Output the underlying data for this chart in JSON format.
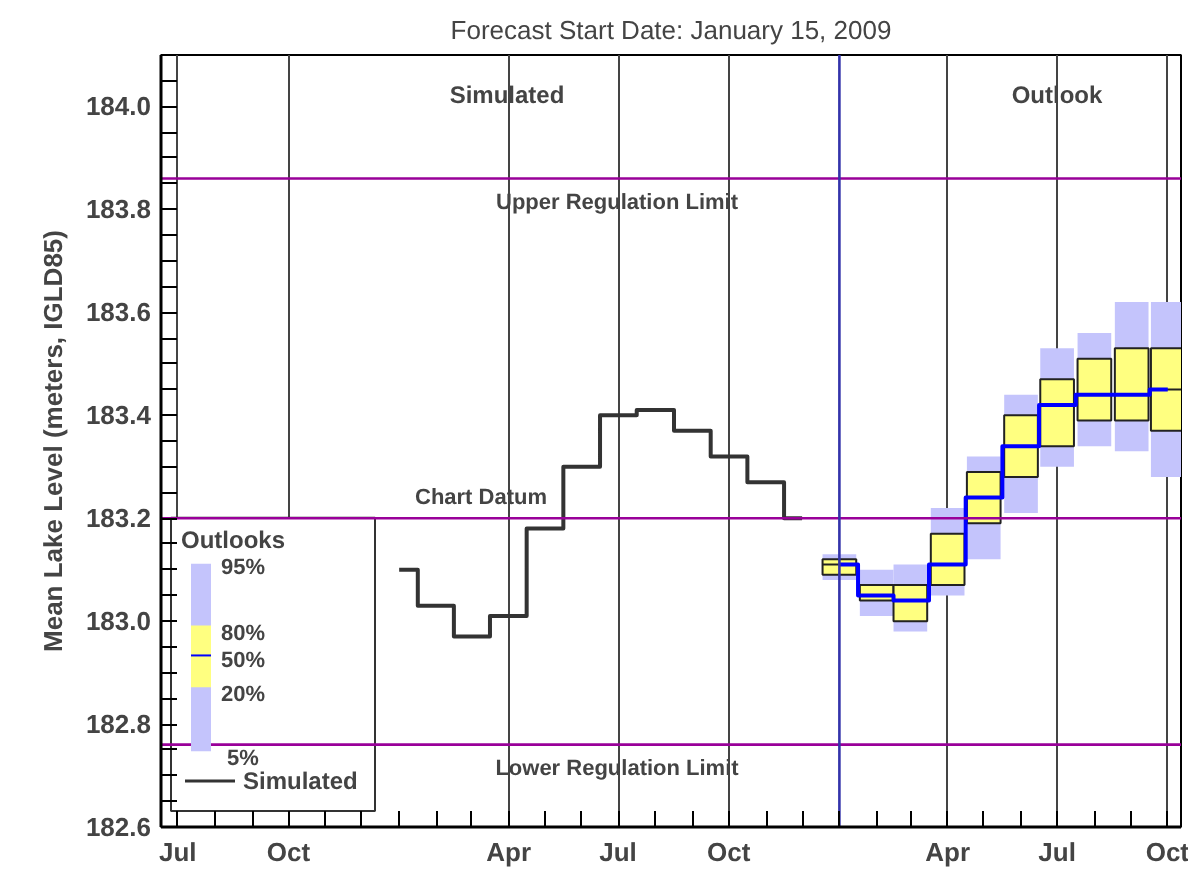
{
  "chart_data": {
    "type": "box",
    "title": "Forecast Start Date: January 15, 2009",
    "ylabel": "Mean Lake Level (meters, IGLD85)",
    "legend_title": "Outlooks",
    "legend": "bottom left",
    "grid": "x",
    "xlim": [
      "2007-06-17",
      "2009-10-12"
    ],
    "ylim": [
      182.6,
      184.1
    ],
    "xticks": [
      {
        "value": "2007-07",
        "label": "Jul"
      },
      {
        "value": "2007-08",
        "label": null
      },
      {
        "value": "2007-09",
        "label": null
      },
      {
        "value": "2007-10",
        "label": "Oct"
      },
      {
        "value": "2007-11",
        "label": null
      },
      {
        "value": "2007-12",
        "label": null
      },
      {
        "value": "2008-01",
        "label": null
      },
      {
        "value": "2008-02",
        "label": null
      },
      {
        "value": "2008-03",
        "label": null
      },
      {
        "value": "2008-04",
        "label": "Apr"
      },
      {
        "value": "2008-05",
        "label": null
      },
      {
        "value": "2008-06",
        "label": null
      },
      {
        "value": "2008-07",
        "label": "Jul"
      },
      {
        "value": "2008-08",
        "label": null
      },
      {
        "value": "2008-09",
        "label": null
      },
      {
        "value": "2008-10",
        "label": "Oct"
      },
      {
        "value": "2008-11",
        "label": null
      },
      {
        "value": "2008-12",
        "label": null
      },
      {
        "value": "2009-01",
        "label": null
      },
      {
        "value": "2009-02",
        "label": null
      },
      {
        "value": "2009-03",
        "label": null
      },
      {
        "value": "2009-04",
        "label": "Apr"
      },
      {
        "value": "2009-05",
        "label": null
      },
      {
        "value": "2009-06",
        "label": null
      },
      {
        "value": "2009-07",
        "label": "Jul"
      },
      {
        "value": "2009-08",
        "label": null
      },
      {
        "value": "2009-09",
        "label": null
      },
      {
        "value": "2009-10",
        "label": "Oct"
      }
    ],
    "yticks": [
      {
        "value": 182.6,
        "label": "182.6"
      },
      {
        "value": 182.65,
        "label": null
      },
      {
        "value": 182.7,
        "label": null
      },
      {
        "value": 182.75,
        "label": null
      },
      {
        "value": 182.8,
        "label": "182.8"
      },
      {
        "value": 182.85,
        "label": null
      },
      {
        "value": 182.9,
        "label": null
      },
      {
        "value": 182.95,
        "label": null
      },
      {
        "value": 183.0,
        "label": "183.0"
      },
      {
        "value": 183.05,
        "label": null
      },
      {
        "value": 183.1,
        "label": null
      },
      {
        "value": 183.15,
        "label": null
      },
      {
        "value": 183.2,
        "label": "183.2"
      },
      {
        "value": 183.25,
        "label": null
      },
      {
        "value": 183.3,
        "label": null
      },
      {
        "value": 183.35,
        "label": null
      },
      {
        "value": 183.4,
        "label": "183.4"
      },
      {
        "value": 183.45,
        "label": null
      },
      {
        "value": 183.5,
        "label": null
      },
      {
        "value": 183.55,
        "label": null
      },
      {
        "value": 183.6,
        "label": "183.6"
      },
      {
        "value": 183.65,
        "label": null
      },
      {
        "value": 183.7,
        "label": null
      },
      {
        "value": 183.75,
        "label": null
      },
      {
        "value": 183.8,
        "label": "183.8"
      },
      {
        "value": 183.85,
        "label": null
      },
      {
        "value": 183.9,
        "label": null
      },
      {
        "value": 183.95,
        "label": null
      },
      {
        "value": 184.0,
        "label": "184.0"
      },
      {
        "value": 184.05,
        "label": null
      }
    ],
    "ref_lines": [
      {
        "axis": "y",
        "value": 183.86,
        "label": "Upper Regulation Limit",
        "color": "#990099"
      },
      {
        "axis": "y",
        "value": 183.2,
        "label": "Chart Datum",
        "color": "#990099"
      },
      {
        "axis": "y",
        "value": 182.76,
        "label": "Lower Regulation Limit",
        "color": "#990099"
      },
      {
        "axis": "x",
        "value": "2009-01-01",
        "color": "#3333aa"
      }
    ],
    "annotations": [
      "Simulated",
      "Outlook",
      "95%",
      "80%",
      "50%",
      "20%",
      "5%"
    ],
    "series": [
      {
        "type": "step",
        "name": "Simulated",
        "color": "#333333",
        "x": [
          "2008-01-01",
          "2008-02-01",
          "2008-03-01",
          "2008-04-01",
          "2008-05-01",
          "2008-06-01",
          "2008-07-01",
          "2008-08-01",
          "2008-09-01",
          "2008-10-01",
          "2008-11-01",
          "2008-12-01"
        ],
        "values": [
          183.1,
          183.03,
          182.97,
          183.01,
          183.18,
          183.3,
          183.4,
          183.41,
          183.37,
          183.32,
          183.27,
          183.2
        ]
      },
      {
        "type": "box",
        "color": "#c4c4fc",
        "colors": [
          "#ffff80",
          "#ffff80",
          "#ffff80",
          "#ffff80",
          "#ffff80",
          "#ffff80",
          "#ffff80",
          "#ffff80",
          "#ffff80",
          "#ffff80"
        ],
        "x": [
          "2009-01-01",
          "2009-02-01",
          "2009-03-01",
          "2009-04-01",
          "2009-05-01",
          "2009-06-01",
          "2009-07-01",
          "2009-08-01",
          "2009-09-01",
          "2009-10-01"
        ],
        "boxes": [
          {
            "low": 183.08,
            "q1": 183.09,
            "median": 183.11,
            "q3": 183.12,
            "high": 183.13
          },
          {
            "low": 183.01,
            "q1": 183.04,
            "median": 183.05,
            "q3": 183.07,
            "high": 183.1
          },
          {
            "low": 182.98,
            "q1": 183.0,
            "median": 183.04,
            "q3": 183.07,
            "high": 183.11
          },
          {
            "low": 183.05,
            "q1": 183.07,
            "median": 183.11,
            "q3": 183.17,
            "high": 183.22
          },
          {
            "low": 183.12,
            "q1": 183.19,
            "median": 183.24,
            "q3": 183.29,
            "high": 183.32
          },
          {
            "low": 183.21,
            "q1": 183.28,
            "median": 183.34,
            "q3": 183.4,
            "high": 183.44
          },
          {
            "low": 183.3,
            "q1": 183.34,
            "median": 183.42,
            "q3": 183.47,
            "high": 183.53
          },
          {
            "low": 183.34,
            "q1": 183.39,
            "median": 183.44,
            "q3": 183.51,
            "high": 183.56
          },
          {
            "low": 183.33,
            "q1": 183.39,
            "median": 183.44,
            "q3": 183.53,
            "high": 183.62
          },
          {
            "low": 183.28,
            "q1": 183.37,
            "median": 183.45,
            "q3": 183.53,
            "high": 183.62
          }
        ]
      },
      {
        "type": "step",
        "color": "#0000ff",
        "x": [
          "2009-01-01",
          "2009-02-01",
          "2009-03-01",
          "2009-04-01",
          "2009-05-01",
          "2009-06-01",
          "2009-07-01",
          "2009-08-01",
          "2009-09-01",
          "2009-10-01"
        ],
        "values": [
          183.11,
          183.05,
          183.04,
          183.11,
          183.24,
          183.34,
          183.42,
          183.44,
          183.44,
          183.45
        ]
      }
    ]
  }
}
